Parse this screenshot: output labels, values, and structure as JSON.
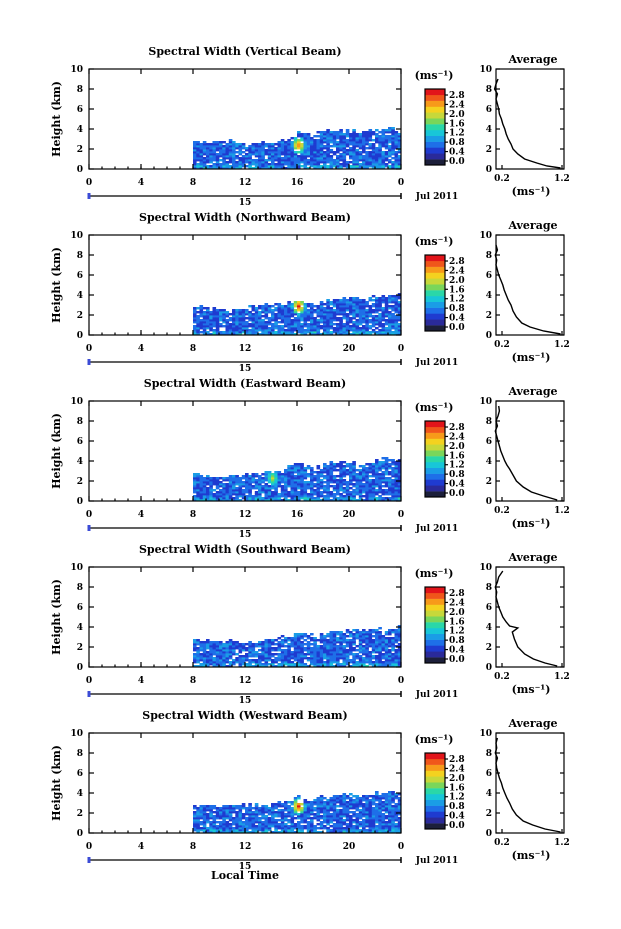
{
  "figure": {
    "xlabel": "Local Time",
    "date_label": "Jul 2011",
    "day_label": "15",
    "cbar_unit": "(ms⁻¹)",
    "avg_title": "Average",
    "avg_unit": "(ms⁻¹)"
  },
  "colors": {
    "scale": [
      "#1c1f3a",
      "#2a2a9a",
      "#1f3bd0",
      "#1e6fe8",
      "#1a9de6",
      "#18c6d8",
      "#2ad7a8",
      "#7ad65a",
      "#c7d83a",
      "#f4d21f",
      "#f79a1a",
      "#f0561a",
      "#e2141a"
    ]
  },
  "chart_data": [
    {
      "type": "heatmap",
      "title": "Spectral Width (Vertical Beam)",
      "xlabel": "Local Time",
      "ylabel": "Height (km)",
      "xlim": [
        0,
        24
      ],
      "ylim": [
        0,
        10
      ],
      "xticks": [
        "0",
        "4",
        "8",
        "12",
        "16",
        "20",
        "0"
      ],
      "yticks": [
        "0",
        "2",
        "4",
        "6",
        "8",
        "10"
      ],
      "coverage_top_km": [
        [
          8,
          2.6
        ],
        [
          9,
          2.8
        ],
        [
          10,
          2.6
        ],
        [
          11,
          2.7
        ],
        [
          12,
          2.4
        ],
        [
          13,
          2.6
        ],
        [
          14,
          2.5
        ],
        [
          15,
          2.9
        ],
        [
          16,
          3.5
        ],
        [
          17,
          3.4
        ],
        [
          18,
          3.6
        ],
        [
          19,
          3.8
        ],
        [
          20,
          3.6
        ],
        [
          21,
          3.8
        ],
        [
          22,
          3.9
        ],
        [
          23,
          4.0
        ],
        [
          24,
          3.9
        ]
      ],
      "colorbar": {
        "ticks": [
          "0.0",
          "0.4",
          "0.8",
          "1.2",
          "1.6",
          "2.0",
          "2.4",
          "2.8"
        ],
        "range": [
          0,
          2.8
        ]
      },
      "hotspot": {
        "time": 16,
        "height_km": 2.3,
        "value": 2.6
      },
      "average_profile": {
        "xlim": [
          0.2,
          1.2
        ],
        "xticks": [
          "0.2",
          "1.2"
        ],
        "yticks": [
          "0",
          "2",
          "4",
          "6",
          "8",
          "10"
        ],
        "points": [
          [
            1.15,
            0.1
          ],
          [
            0.95,
            0.3
          ],
          [
            0.8,
            0.6
          ],
          [
            0.62,
            1.0
          ],
          [
            0.52,
            1.5
          ],
          [
            0.45,
            2.0
          ],
          [
            0.42,
            2.5
          ],
          [
            0.38,
            3.0
          ],
          [
            0.35,
            3.5
          ],
          [
            0.33,
            4.0
          ],
          [
            0.3,
            4.5
          ],
          [
            0.28,
            5.0
          ],
          [
            0.25,
            5.5
          ],
          [
            0.24,
            6.0
          ],
          [
            0.22,
            6.5
          ],
          [
            0.2,
            7.0
          ],
          [
            0.22,
            7.5
          ],
          [
            0.18,
            8.0
          ],
          [
            0.2,
            8.5
          ],
          [
            0.23,
            9.0
          ]
        ]
      }
    },
    {
      "type": "heatmap",
      "title": "Spectral Width (Northward Beam)",
      "xlabel": "Local Time",
      "ylabel": "Height (km)",
      "xlim": [
        0,
        24
      ],
      "ylim": [
        0,
        10
      ],
      "xticks": [
        "0",
        "4",
        "8",
        "12",
        "16",
        "20",
        "0"
      ],
      "yticks": [
        "0",
        "2",
        "4",
        "6",
        "8",
        "10"
      ],
      "coverage_top_km": [
        [
          8,
          2.7
        ],
        [
          9,
          2.6
        ],
        [
          10,
          2.5
        ],
        [
          11,
          2.3
        ],
        [
          12,
          2.6
        ],
        [
          13,
          2.8
        ],
        [
          14,
          3.0
        ],
        [
          15,
          3.1
        ],
        [
          16,
          3.4
        ],
        [
          17,
          3.0
        ],
        [
          18,
          3.2
        ],
        [
          19,
          3.6
        ],
        [
          20,
          3.7
        ],
        [
          21,
          3.5
        ],
        [
          22,
          3.9
        ],
        [
          23,
          4.0
        ],
        [
          24,
          3.8
        ]
      ],
      "colorbar": {
        "ticks": [
          "0.0",
          "0.4",
          "0.8",
          "1.2",
          "1.6",
          "2.0",
          "2.4",
          "2.8"
        ],
        "range": [
          0,
          2.8
        ]
      },
      "hotspot": {
        "time": 16,
        "height_km": 2.8,
        "value": 2.8
      },
      "average_profile": {
        "xlim": [
          0.2,
          1.2
        ],
        "xticks": [
          "0.2",
          "1.2"
        ],
        "yticks": [
          "0",
          "2",
          "4",
          "6",
          "8",
          "10"
        ],
        "points": [
          [
            1.15,
            0.1
          ],
          [
            0.9,
            0.4
          ],
          [
            0.7,
            0.8
          ],
          [
            0.58,
            1.2
          ],
          [
            0.5,
            1.8
          ],
          [
            0.45,
            2.4
          ],
          [
            0.42,
            3.0
          ],
          [
            0.38,
            3.5
          ],
          [
            0.35,
            4.0
          ],
          [
            0.32,
            4.5
          ],
          [
            0.3,
            5.0
          ],
          [
            0.27,
            5.5
          ],
          [
            0.24,
            6.0
          ],
          [
            0.22,
            6.5
          ],
          [
            0.2,
            7.0
          ],
          [
            0.21,
            7.5
          ],
          [
            0.19,
            8.0
          ],
          [
            0.22,
            8.5
          ],
          [
            0.2,
            9.0
          ]
        ]
      }
    },
    {
      "type": "heatmap",
      "title": "Spectral Width (Eastward Beam)",
      "xlabel": "Local Time",
      "ylabel": "Height (km)",
      "xlim": [
        0,
        24
      ],
      "ylim": [
        0,
        10
      ],
      "xticks": [
        "0",
        "4",
        "8",
        "12",
        "16",
        "20",
        "0"
      ],
      "yticks": [
        "0",
        "2",
        "4",
        "6",
        "8",
        "10"
      ],
      "coverage_top_km": [
        [
          8,
          2.7
        ],
        [
          9,
          2.5
        ],
        [
          10,
          2.4
        ],
        [
          11,
          2.6
        ],
        [
          12,
          2.5
        ],
        [
          13,
          2.7
        ],
        [
          14,
          2.8
        ],
        [
          15,
          3.1
        ],
        [
          16,
          3.6
        ],
        [
          17,
          3.3
        ],
        [
          18,
          3.5
        ],
        [
          19,
          3.9
        ],
        [
          20,
          3.8
        ],
        [
          21,
          3.7
        ],
        [
          22,
          4.0
        ],
        [
          23,
          4.2
        ],
        [
          24,
          4.0
        ]
      ],
      "colorbar": {
        "ticks": [
          "0.0",
          "0.4",
          "0.8",
          "1.2",
          "1.6",
          "2.0",
          "2.4",
          "2.8"
        ],
        "range": [
          0,
          2.8
        ]
      },
      "hotspot": {
        "time": 14,
        "height_km": 2.2,
        "value": 1.9
      },
      "average_profile": {
        "xlim": [
          0.2,
          1.2
        ],
        "xticks": [
          "0.2",
          "1.2"
        ],
        "yticks": [
          "0",
          "2",
          "4",
          "6",
          "8",
          "10"
        ],
        "points": [
          [
            1.1,
            0.1
          ],
          [
            0.9,
            0.5
          ],
          [
            0.72,
            0.9
          ],
          [
            0.6,
            1.4
          ],
          [
            0.5,
            2.0
          ],
          [
            0.45,
            2.6
          ],
          [
            0.4,
            3.2
          ],
          [
            0.36,
            3.6
          ],
          [
            0.33,
            4.0
          ],
          [
            0.3,
            4.5
          ],
          [
            0.27,
            5.0
          ],
          [
            0.25,
            5.5
          ],
          [
            0.23,
            6.0
          ],
          [
            0.21,
            6.5
          ],
          [
            0.19,
            7.0
          ],
          [
            0.22,
            7.5
          ],
          [
            0.2,
            8.0
          ],
          [
            0.23,
            8.5
          ],
          [
            0.25,
            9.0
          ],
          [
            0.24,
            9.5
          ]
        ]
      }
    },
    {
      "type": "heatmap",
      "title": "Spectral Width (Southward Beam)",
      "xlabel": "Local Time",
      "ylabel": "Height (km)",
      "xlim": [
        0,
        24
      ],
      "ylim": [
        0,
        10
      ],
      "xticks": [
        "0",
        "4",
        "8",
        "12",
        "16",
        "20",
        "0"
      ],
      "yticks": [
        "0",
        "2",
        "4",
        "6",
        "8",
        "10"
      ],
      "coverage_top_km": [
        [
          8,
          2.7
        ],
        [
          9,
          2.6
        ],
        [
          10,
          2.5
        ],
        [
          11,
          2.6
        ],
        [
          12,
          2.4
        ],
        [
          13,
          2.6
        ],
        [
          14,
          2.8
        ],
        [
          15,
          3.0
        ],
        [
          16,
          3.3
        ],
        [
          17,
          3.1
        ],
        [
          18,
          3.2
        ],
        [
          19,
          3.5
        ],
        [
          20,
          3.6
        ],
        [
          21,
          3.6
        ],
        [
          22,
          3.8
        ],
        [
          23,
          3.9
        ],
        [
          24,
          3.8
        ]
      ],
      "colorbar": {
        "ticks": [
          "0.0",
          "0.4",
          "0.8",
          "1.2",
          "1.6",
          "2.0",
          "2.4",
          "2.8"
        ],
        "range": [
          0,
          2.8
        ]
      },
      "hotspot": {
        "time": 16,
        "height_km": 3.8,
        "value": 1.8
      },
      "average_profile": {
        "xlim": [
          0.2,
          1.2
        ],
        "xticks": [
          "0.2",
          "1.2"
        ],
        "yticks": [
          "0",
          "2",
          "4",
          "6",
          "8",
          "10"
        ],
        "points": [
          [
            1.1,
            0.1
          ],
          [
            0.92,
            0.4
          ],
          [
            0.75,
            0.8
          ],
          [
            0.62,
            1.3
          ],
          [
            0.52,
            2.0
          ],
          [
            0.47,
            2.8
          ],
          [
            0.44,
            3.5
          ],
          [
            0.52,
            3.9
          ],
          [
            0.4,
            4.1
          ],
          [
            0.35,
            4.5
          ],
          [
            0.3,
            5.0
          ],
          [
            0.27,
            5.5
          ],
          [
            0.24,
            6.0
          ],
          [
            0.22,
            6.5
          ],
          [
            0.2,
            7.0
          ],
          [
            0.21,
            7.5
          ],
          [
            0.19,
            8.0
          ],
          [
            0.22,
            8.5
          ],
          [
            0.24,
            9.0
          ],
          [
            0.3,
            9.6
          ]
        ]
      }
    },
    {
      "type": "heatmap",
      "title": "Spectral Width (Westward Beam)",
      "xlabel": "Local Time",
      "ylabel": "Height (km)",
      "xlim": [
        0,
        24
      ],
      "ylim": [
        0,
        10
      ],
      "xticks": [
        "0",
        "4",
        "8",
        "12",
        "16",
        "20",
        "0"
      ],
      "yticks": [
        "0",
        "2",
        "4",
        "6",
        "8",
        "10"
      ],
      "coverage_top_km": [
        [
          8,
          2.7
        ],
        [
          9,
          2.6
        ],
        [
          10,
          2.5
        ],
        [
          11,
          2.7
        ],
        [
          12,
          2.6
        ],
        [
          13,
          2.7
        ],
        [
          14,
          2.9
        ],
        [
          15,
          3.0
        ],
        [
          16,
          3.5
        ],
        [
          17,
          3.2
        ],
        [
          18,
          3.6
        ],
        [
          19,
          3.8
        ],
        [
          20,
          3.7
        ],
        [
          21,
          3.6
        ],
        [
          22,
          3.9
        ],
        [
          23,
          4.0
        ],
        [
          24,
          3.9
        ]
      ],
      "colorbar": {
        "ticks": [
          "0.0",
          "0.4",
          "0.8",
          "1.2",
          "1.6",
          "2.0",
          "2.4",
          "2.8"
        ],
        "range": [
          0,
          2.8
        ]
      },
      "hotspot": {
        "time": 16,
        "height_km": 2.6,
        "value": 2.8
      },
      "average_profile": {
        "xlim": [
          0.2,
          1.2
        ],
        "xticks": [
          "0.2",
          "1.2"
        ],
        "yticks": [
          "0",
          "2",
          "4",
          "6",
          "8",
          "10"
        ],
        "points": [
          [
            1.15,
            0.1
          ],
          [
            0.92,
            0.4
          ],
          [
            0.74,
            0.8
          ],
          [
            0.6,
            1.2
          ],
          [
            0.5,
            1.8
          ],
          [
            0.44,
            2.4
          ],
          [
            0.4,
            3.0
          ],
          [
            0.36,
            3.5
          ],
          [
            0.33,
            4.0
          ],
          [
            0.3,
            4.5
          ],
          [
            0.28,
            5.0
          ],
          [
            0.25,
            5.5
          ],
          [
            0.23,
            6.0
          ],
          [
            0.21,
            6.5
          ],
          [
            0.2,
            7.0
          ],
          [
            0.22,
            7.5
          ],
          [
            0.19,
            8.0
          ],
          [
            0.21,
            8.5
          ],
          [
            0.2,
            9.0
          ],
          [
            0.22,
            9.5
          ]
        ]
      }
    }
  ]
}
